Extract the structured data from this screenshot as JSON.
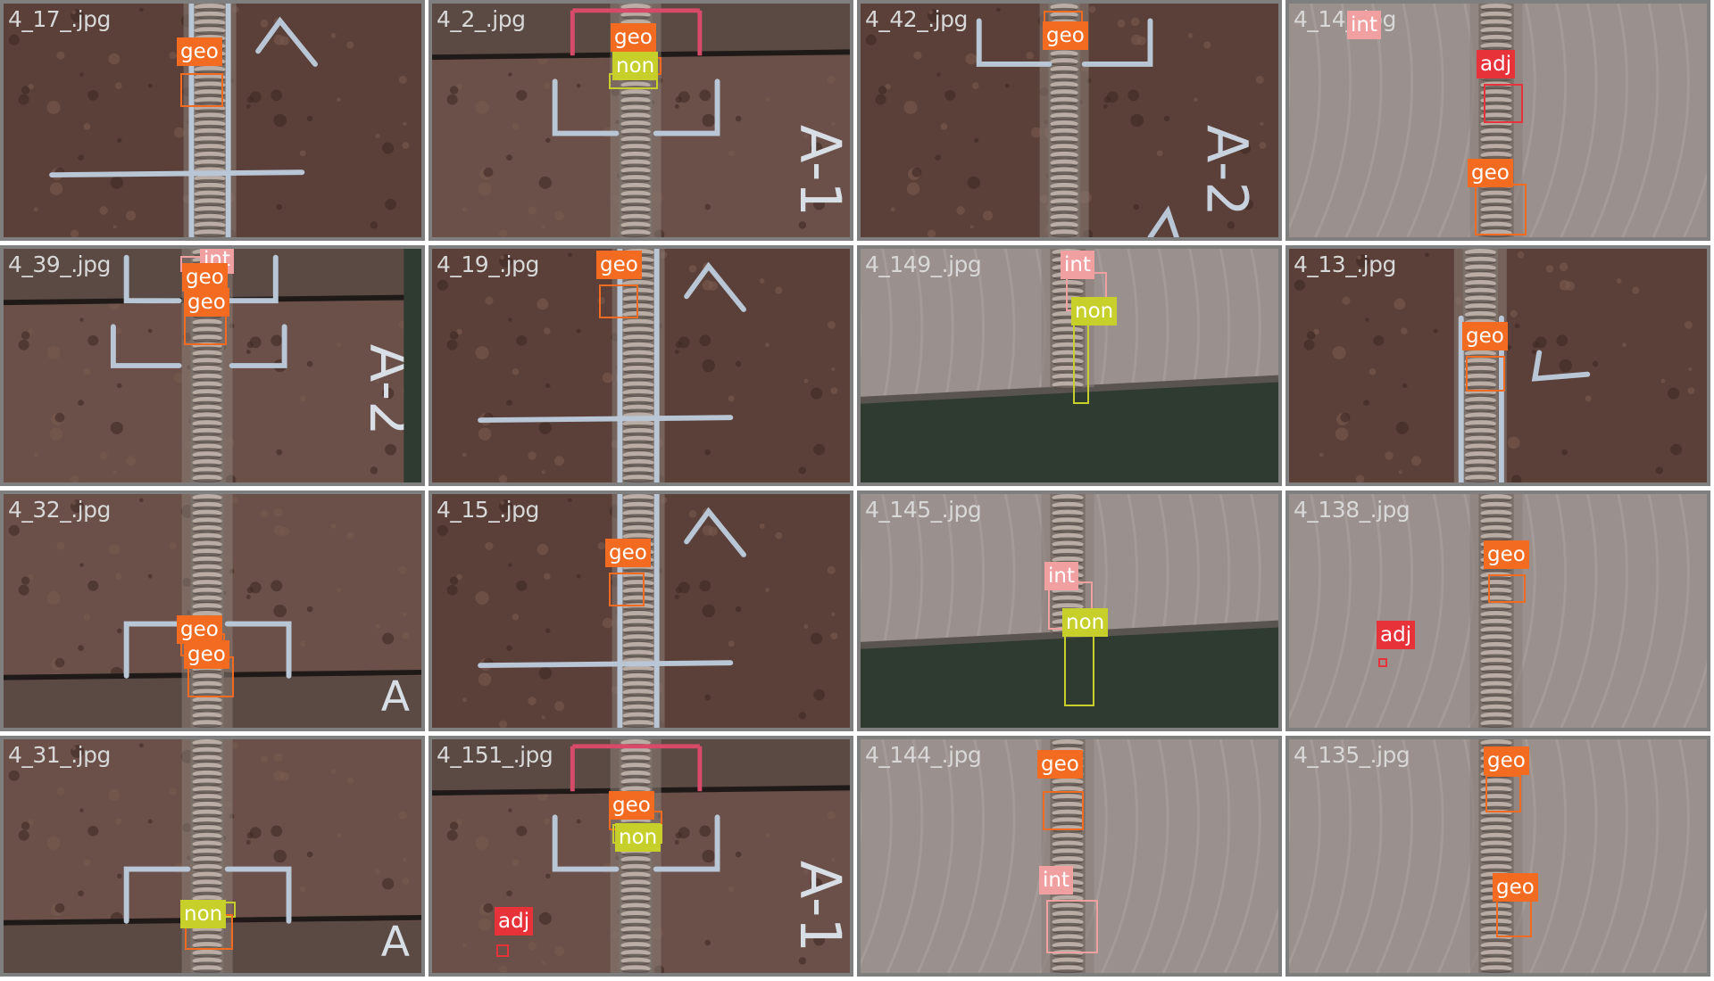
{
  "class_colors": {
    "geo": "#f26b21",
    "non": "#c7cf2a",
    "int": "#f0a0a0",
    "adj": "#e8323a"
  },
  "tiles": [
    {
      "filename": "4_17_.jpg",
      "scene": "dark-upper",
      "marks": [
        {
          "cls": "geo",
          "label": "geo"
        }
      ]
    },
    {
      "filename": "4_2_.jpg",
      "scene": "joint-a1",
      "marks": [
        {
          "cls": "geo",
          "label": "geo"
        },
        {
          "cls": "non",
          "label": "non"
        }
      ]
    },
    {
      "filename": "4_42_.jpg",
      "scene": "dark-a2",
      "marks": [
        {
          "cls": "geo",
          "label": "geo"
        }
      ]
    },
    {
      "filename": "4_14_.jpg",
      "scene": "grey",
      "marks": [
        {
          "cls": "adj",
          "label": "adj"
        },
        {
          "cls": "geo",
          "label": "geo"
        },
        {
          "cls": "int",
          "label": "int"
        }
      ]
    },
    {
      "filename": "4_39_.jpg",
      "scene": "joint-a2",
      "marks": [
        {
          "cls": "int",
          "label": "int"
        },
        {
          "cls": "geo",
          "label": "geo"
        },
        {
          "cls": "geo",
          "label": "geo"
        }
      ]
    },
    {
      "filename": "4_19_.jpg",
      "scene": "dark-upper",
      "marks": [
        {
          "cls": "geo",
          "label": "geo"
        }
      ]
    },
    {
      "filename": "4_149_.jpg",
      "scene": "grey-green",
      "marks": [
        {
          "cls": "int",
          "label": "int"
        },
        {
          "cls": "non",
          "label": "non"
        }
      ]
    },
    {
      "filename": "4_13_.jpg",
      "scene": "dark-lower",
      "marks": [
        {
          "cls": "geo",
          "label": "geo"
        }
      ]
    },
    {
      "filename": "4_32_.jpg",
      "scene": "joint-bottom",
      "marks": [
        {
          "cls": "geo",
          "label": "geo"
        },
        {
          "cls": "geo",
          "label": "geo"
        }
      ]
    },
    {
      "filename": "4_15_.jpg",
      "scene": "dark-upper",
      "marks": [
        {
          "cls": "geo",
          "label": "geo"
        }
      ]
    },
    {
      "filename": "4_145_.jpg",
      "scene": "grey-green",
      "marks": [
        {
          "cls": "int",
          "label": "int"
        },
        {
          "cls": "non",
          "label": "non"
        }
      ]
    },
    {
      "filename": "4_138_.jpg",
      "scene": "grey",
      "marks": [
        {
          "cls": "geo",
          "label": "geo"
        },
        {
          "cls": "adj",
          "label": "adj"
        }
      ]
    },
    {
      "filename": "4_31_.jpg",
      "scene": "joint-bottom",
      "marks": [
        {
          "cls": "non",
          "label": "non"
        },
        {
          "cls": "geo",
          "label": ""
        }
      ]
    },
    {
      "filename": "4_151_.jpg",
      "scene": "joint-a1",
      "marks": [
        {
          "cls": "geo",
          "label": "geo"
        },
        {
          "cls": "non",
          "label": "non"
        },
        {
          "cls": "adj",
          "label": "adj"
        }
      ]
    },
    {
      "filename": "4_144_.jpg",
      "scene": "grey",
      "marks": [
        {
          "cls": "geo",
          "label": "geo"
        },
        {
          "cls": "int",
          "label": "int"
        }
      ]
    },
    {
      "filename": "4_135_.jpg",
      "scene": "grey",
      "marks": [
        {
          "cls": "geo",
          "label": "geo"
        },
        {
          "cls": "geo",
          "label": "geo"
        }
      ]
    }
  ]
}
